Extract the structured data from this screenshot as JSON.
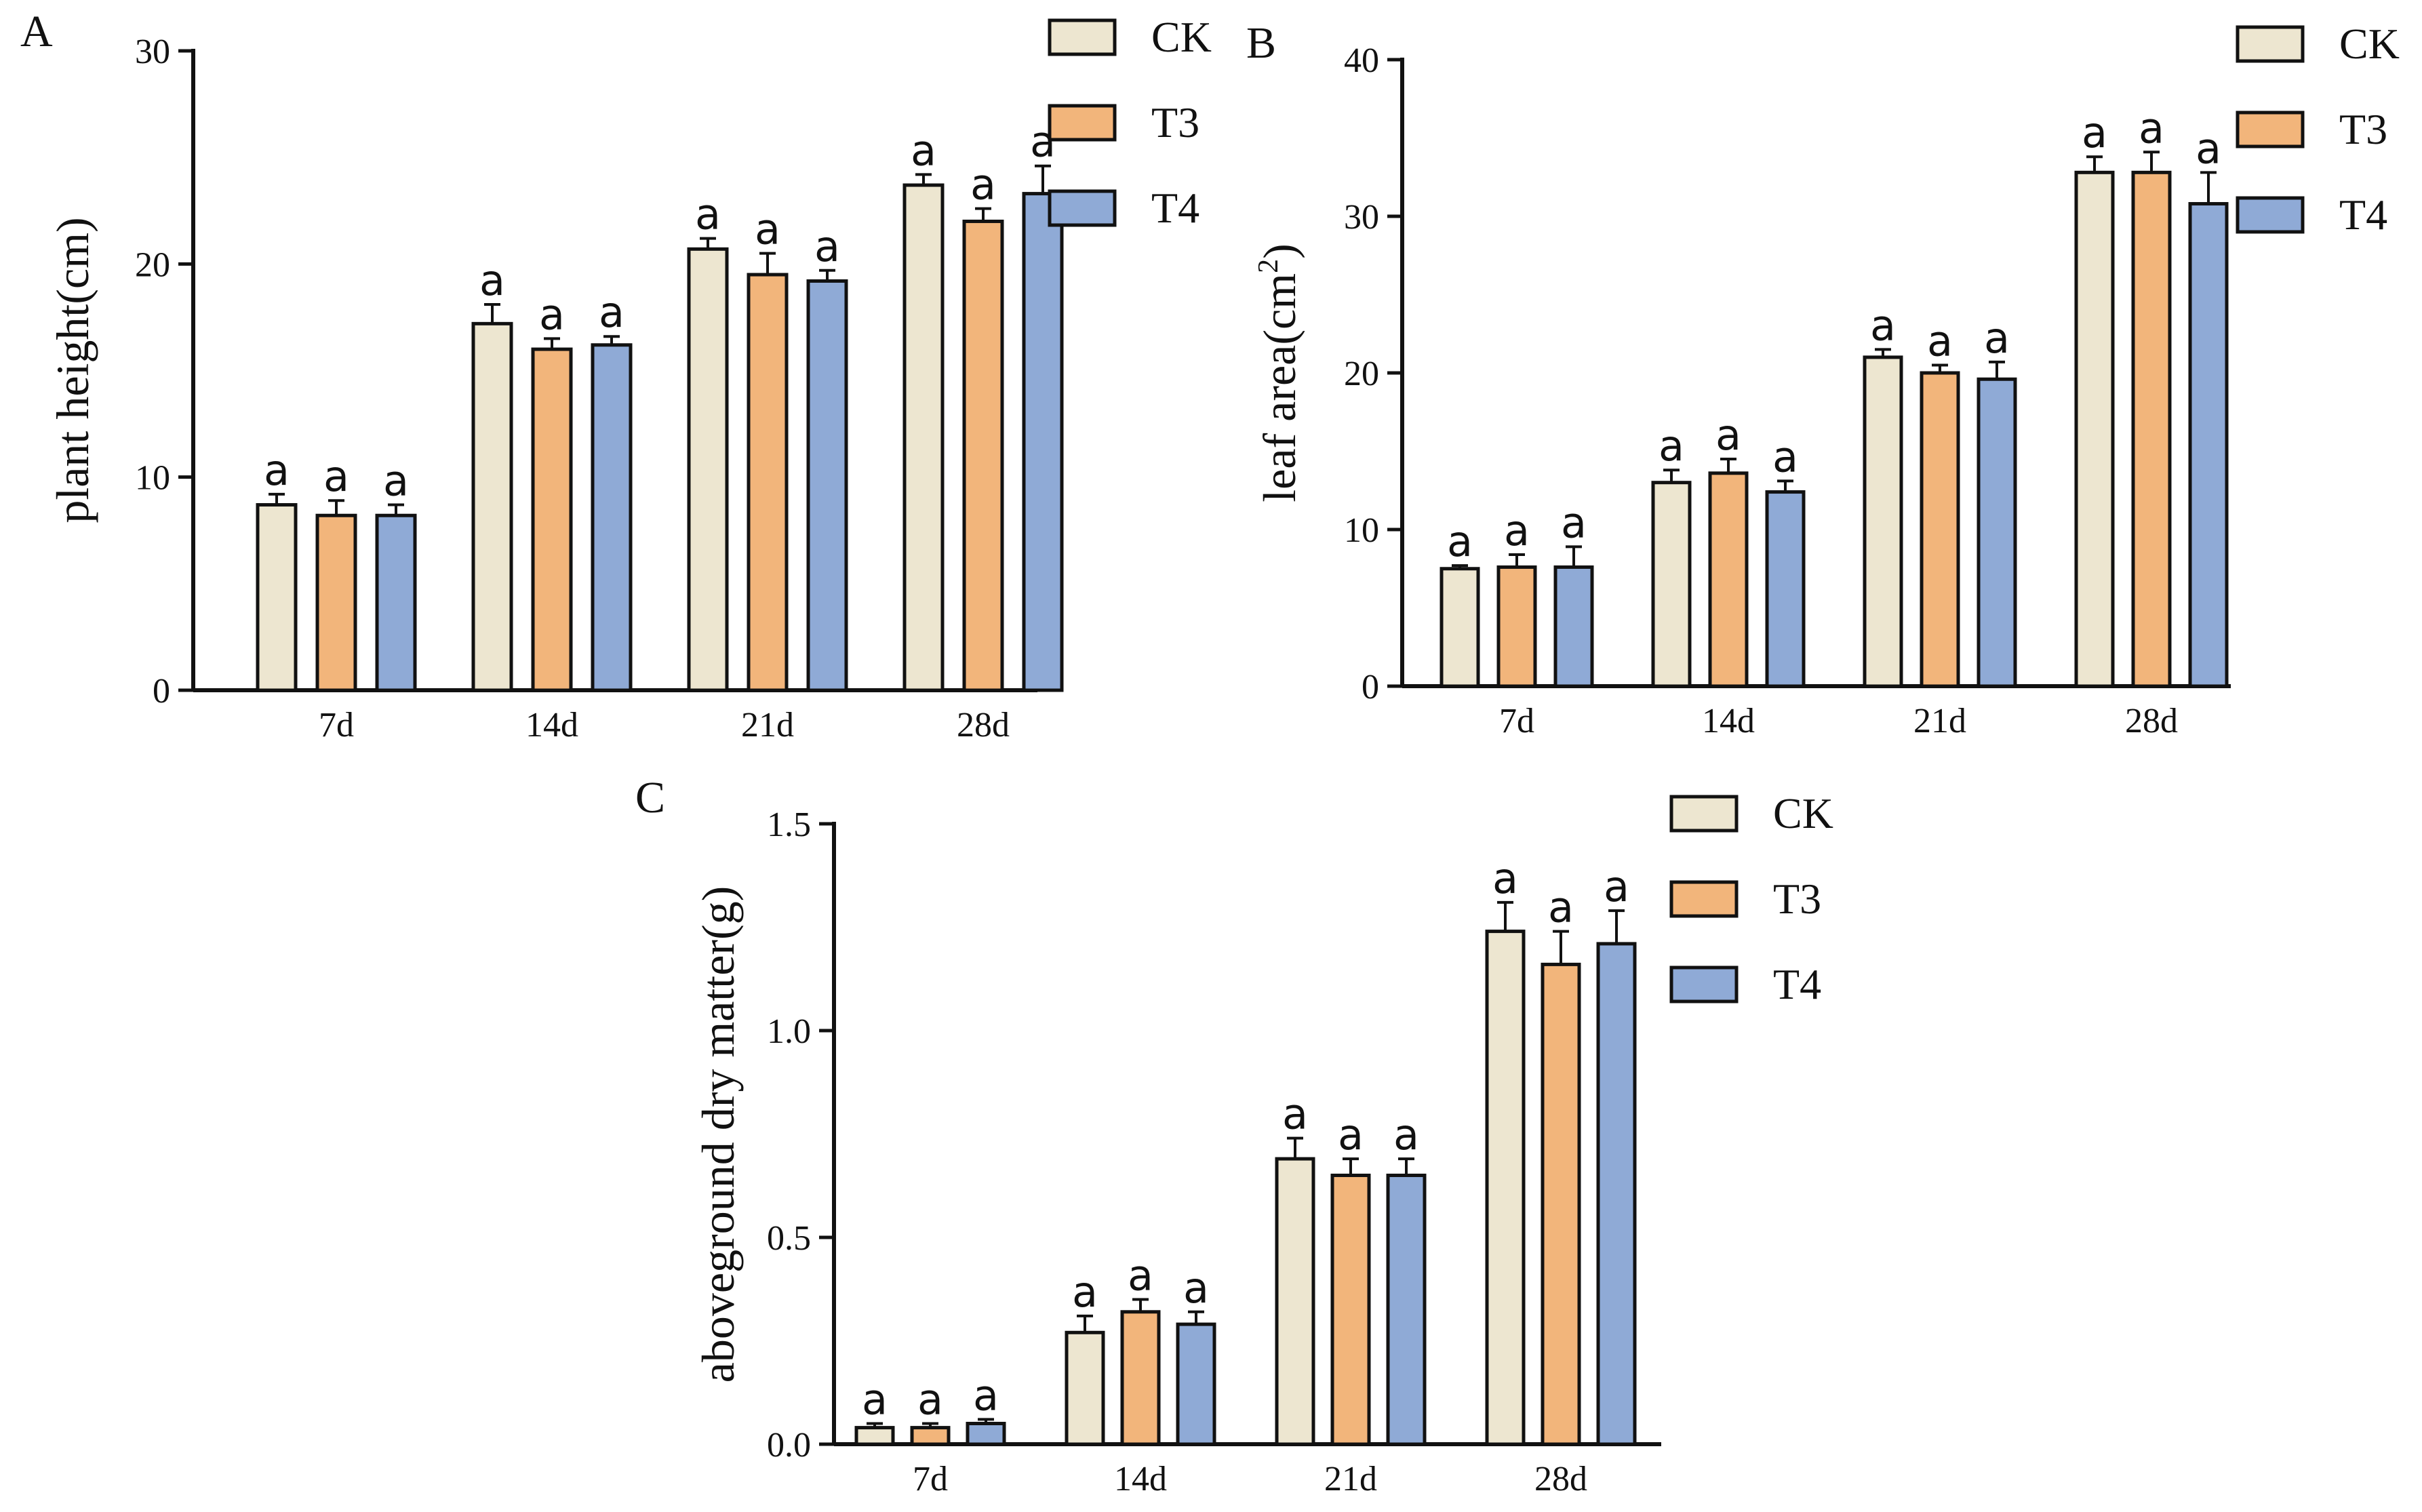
{
  "figure": {
    "series_colors": {
      "CK": "#ede6d0",
      "T3": "#f2b57b",
      "T4": "#8faad6"
    }
  },
  "chart_data": [
    {
      "panel": "A",
      "type": "bar",
      "ylabel": "plant height(cm)",
      "xlabel": "",
      "ylim": [
        0,
        30
      ],
      "yticks": [
        0,
        10,
        20,
        30
      ],
      "categories": [
        "7d",
        "14d",
        "21d",
        "28d"
      ],
      "legend": [
        "CK",
        "T3",
        "T4"
      ],
      "legend_position": "top-right",
      "series": [
        {
          "name": "CK",
          "values": [
            8.7,
            17.2,
            20.7,
            23.7
          ],
          "errors": [
            0.5,
            0.9,
            0.5,
            0.5
          ],
          "labels": [
            "a",
            "a",
            "a",
            "a"
          ]
        },
        {
          "name": "T3",
          "values": [
            8.2,
            16.0,
            19.5,
            22.0
          ],
          "errors": [
            0.7,
            0.5,
            1.0,
            0.6
          ],
          "labels": [
            "a",
            "a",
            "a",
            "a"
          ]
        },
        {
          "name": "T4",
          "values": [
            8.2,
            16.2,
            19.2,
            23.3
          ],
          "errors": [
            0.5,
            0.4,
            0.5,
            1.3
          ],
          "labels": [
            "a",
            "a",
            "a",
            "a"
          ]
        }
      ]
    },
    {
      "panel": "B",
      "type": "bar",
      "ylabel": "leaf area(cm",
      "ylabel_sup": "2",
      "ylabel_end": ")",
      "xlabel": "",
      "ylim": [
        0,
        40
      ],
      "yticks": [
        0,
        10,
        20,
        30,
        40
      ],
      "categories": [
        "7d",
        "14d",
        "21d",
        "28d"
      ],
      "legend": [
        "CK",
        "T3",
        "T4"
      ],
      "legend_position": "top-right",
      "series": [
        {
          "name": "CK",
          "values": [
            7.5,
            13.0,
            21.0,
            32.8
          ],
          "errors": [
            0.2,
            0.8,
            0.5,
            1.0
          ],
          "labels": [
            "a",
            "a",
            "a",
            "a"
          ]
        },
        {
          "name": "T3",
          "values": [
            7.6,
            13.6,
            20.0,
            32.8
          ],
          "errors": [
            0.8,
            0.9,
            0.5,
            1.3
          ],
          "labels": [
            "a",
            "a",
            "a",
            "a"
          ]
        },
        {
          "name": "T4",
          "values": [
            7.6,
            12.4,
            19.6,
            30.8
          ],
          "errors": [
            1.3,
            0.7,
            1.1,
            2.0
          ],
          "labels": [
            "a",
            "a",
            "a",
            "a"
          ]
        }
      ]
    },
    {
      "panel": "C",
      "type": "bar",
      "ylabel": "aboveground dry matter(g)",
      "xlabel": "",
      "ylim": [
        0,
        1.5
      ],
      "yticks": [
        "0.0",
        "0.5",
        "1.0",
        "1.5"
      ],
      "categories": [
        "7d",
        "14d",
        "21d",
        "28d"
      ],
      "legend": [
        "CK",
        "T3",
        "T4"
      ],
      "legend_position": "top-right",
      "series": [
        {
          "name": "CK",
          "values": [
            0.04,
            0.27,
            0.69,
            1.24
          ],
          "errors": [
            0.01,
            0.04,
            0.05,
            0.07
          ],
          "labels": [
            "a",
            "a",
            "a",
            "a"
          ]
        },
        {
          "name": "T3",
          "values": [
            0.04,
            0.32,
            0.65,
            1.16
          ],
          "errors": [
            0.01,
            0.03,
            0.04,
            0.08
          ],
          "labels": [
            "a",
            "a",
            "a",
            "a"
          ]
        },
        {
          "name": "T4",
          "values": [
            0.05,
            0.29,
            0.65,
            1.21
          ],
          "errors": [
            0.01,
            0.03,
            0.04,
            0.08
          ],
          "labels": [
            "a",
            "a",
            "a",
            "a"
          ]
        }
      ]
    }
  ]
}
